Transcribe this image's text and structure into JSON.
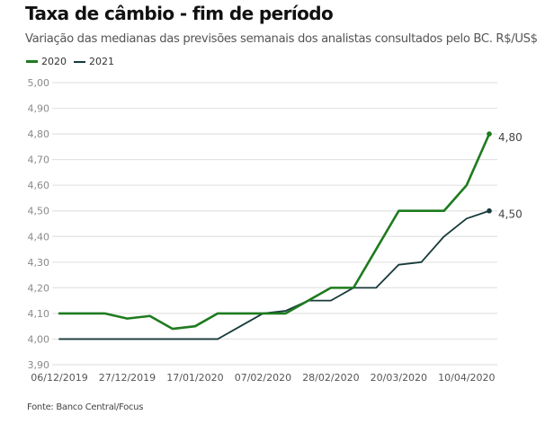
{
  "header": {
    "title": "Taxa de câmbio - fim de período",
    "subtitle": "Variação das medianas das previsões semanais dos analistas consultados pelo BC. R$/US$"
  },
  "legend": [
    {
      "label": "2020",
      "color": "#1e7b1e"
    },
    {
      "label": "2021",
      "color": "#173a3a"
    }
  ],
  "footer": {
    "source": "Fonte: Banco Central/Focus"
  },
  "chart_data": {
    "type": "line",
    "title": "Taxa de câmbio - fim de período",
    "subtitle": "Variação das medianas das previsões semanais dos analistas consultados pelo BC. R$/US$",
    "xlabel": "",
    "ylabel": "",
    "ylim": [
      3.9,
      5.0
    ],
    "yticks": [
      "5,00",
      "4,90",
      "4,80",
      "4,70",
      "4,60",
      "4,50",
      "4,40",
      "4,30",
      "4,20",
      "4,10",
      "4,00",
      "3,90"
    ],
    "ytick_values": [
      5.0,
      4.9,
      4.8,
      4.7,
      4.6,
      4.5,
      4.4,
      4.3,
      4.2,
      4.1,
      4.0,
      3.9
    ],
    "x": [
      "06/12/2019",
      "13/12/2019",
      "20/12/2019",
      "27/12/2019",
      "03/01/2020",
      "10/01/2020",
      "17/01/2020",
      "24/01/2020",
      "31/01/2020",
      "07/02/2020",
      "14/02/2020",
      "21/02/2020",
      "28/02/2020",
      "06/03/2020",
      "13/03/2020",
      "20/03/2020",
      "27/03/2020",
      "03/04/2020",
      "10/04/2020",
      "17/04/2020"
    ],
    "xtick_labels": [
      "06/12/2019",
      "27/12/2019",
      "17/01/2020",
      "07/02/2020",
      "28/02/2020",
      "20/03/2020",
      "10/04/2020"
    ],
    "xtick_indices": [
      0,
      3,
      6,
      9,
      12,
      15,
      18
    ],
    "grid": true,
    "legend_position": "top-left",
    "series": [
      {
        "name": "2020",
        "color": "#1e7b1e",
        "values": [
          4.1,
          4.1,
          4.1,
          4.08,
          4.09,
          4.04,
          4.05,
          4.1,
          4.1,
          4.1,
          4.1,
          4.15,
          4.2,
          4.2,
          4.35,
          4.5,
          4.5,
          4.5,
          4.6,
          4.8
        ],
        "end_label": "4,80"
      },
      {
        "name": "2021",
        "color": "#173a3a",
        "values": [
          4.0,
          4.0,
          4.0,
          4.0,
          4.0,
          4.0,
          4.0,
          4.0,
          4.05,
          4.1,
          4.11,
          4.15,
          4.15,
          4.2,
          4.2,
          4.29,
          4.3,
          4.4,
          4.47,
          4.5
        ],
        "end_label": "4,50"
      }
    ]
  }
}
